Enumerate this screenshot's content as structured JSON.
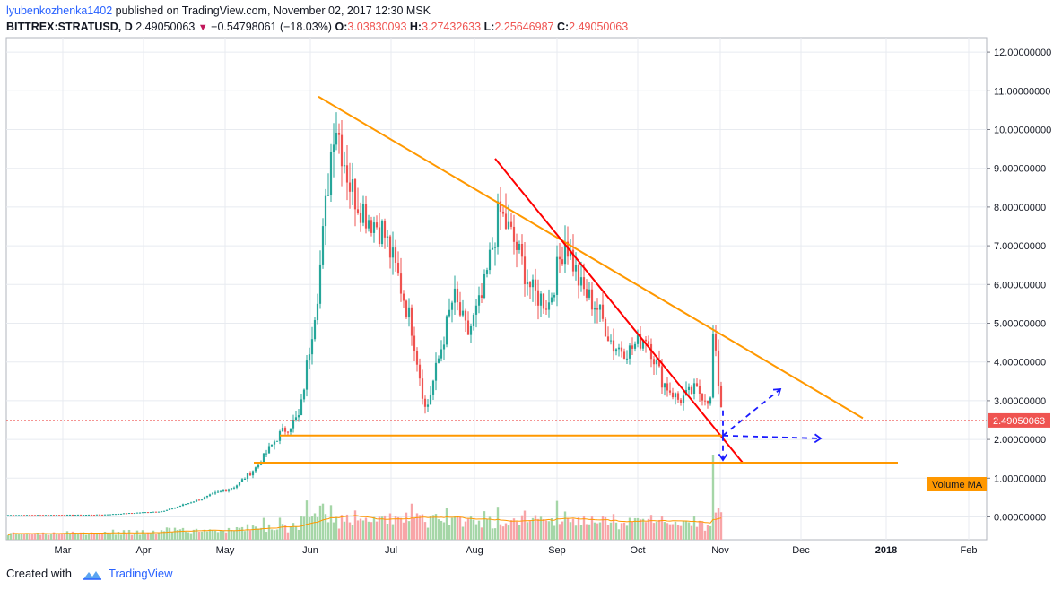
{
  "header": {
    "author": "lyubenkozhenka1402",
    "published_text": "published on TradingView.com, November 02, 2017 12:30 MSK",
    "symbol": "BITTREX:STRATUSD, D",
    "last": "2.49050063",
    "change": "−0.54798061 (−18.03%)",
    "o_label": "O:",
    "o_value": "3.03830093",
    "h_label": "H:",
    "h_value": "3.27432633",
    "l_label": "L:",
    "l_value": "2.25646987",
    "c_label": "C:",
    "c_value": "2.49050063"
  },
  "footer": {
    "created_with": "Created with",
    "brand": "TradingView"
  },
  "colors": {
    "up": "#26a69a",
    "down": "#ef5350",
    "volume_up": "#a5d6a7",
    "volume_down": "#f8a5a8",
    "trendline": "#ff9800",
    "breakout_line": "#ff0000",
    "projection": "#1a1aff",
    "price_tag": "#ef5350",
    "volume_ma": "#ff9800",
    "grid": "#e8ebf0"
  },
  "chart_data": {
    "type": "candlestick",
    "interval": "D",
    "y_axis": {
      "side": "right",
      "ticks": [
        "12.00000000",
        "11.00000000",
        "10.00000000",
        "9.00000000",
        "8.00000000",
        "7.00000000",
        "6.00000000",
        "5.00000000",
        "4.00000000",
        "3.00000000",
        "2.00000000",
        "1.00000000",
        "0.00000000"
      ],
      "ylim": [
        -0.6,
        12.4
      ]
    },
    "x_axis": {
      "ticks": [
        "Mar",
        "Apr",
        "May",
        "Jun",
        "Jul",
        "Aug",
        "Sep",
        "Oct",
        "Nov",
        "Dec",
        "2018",
        "Feb"
      ]
    },
    "grid": true,
    "last_price_label": "2.49050063",
    "volume_ma_label": "Volume MA",
    "price_path": [
      [
        "Feb",
        0.05
      ],
      [
        "Mar",
        0.06
      ],
      [
        "Apr",
        0.15
      ],
      [
        "Apr",
        0.5
      ],
      [
        "May",
        0.8
      ],
      [
        "May",
        1.3
      ],
      [
        "May",
        2.1
      ],
      [
        "May",
        2.6
      ],
      [
        "Jun",
        6.0
      ],
      [
        "Jun",
        10.4
      ],
      [
        "Jun",
        8.5
      ],
      [
        "Jun",
        7.8
      ],
      [
        "Jun",
        7.4
      ],
      [
        "Jul",
        6.2
      ],
      [
        "Jul",
        4.9
      ],
      [
        "Jul",
        2.7
      ],
      [
        "Jul",
        4.2
      ],
      [
        "Jul",
        5.7
      ],
      [
        "Jul",
        4.7
      ],
      [
        "Aug",
        5.7
      ],
      [
        "Aug",
        7.9
      ],
      [
        "Aug",
        7.0
      ],
      [
        "Aug",
        5.8
      ],
      [
        "Aug",
        5.5
      ],
      [
        "Sep",
        7.2
      ],
      [
        "Sep",
        5.9
      ],
      [
        "Sep",
        5.4
      ],
      [
        "Sep",
        4.4
      ],
      [
        "Sep",
        4.3
      ],
      [
        "Oct",
        4.7
      ],
      [
        "Oct",
        3.5
      ],
      [
        "Oct",
        3.0
      ],
      [
        "Oct",
        3.3
      ],
      [
        "Oct",
        4.9
      ],
      [
        "Nov",
        3.0
      ],
      [
        "Nov",
        2.49
      ]
    ],
    "annotations": {
      "descending_trendline": {
        "from": [
          "Jun",
          10.85
        ],
        "to": [
          "Dec",
          2.55
        ]
      },
      "breakout_line": {
        "from": [
          "Aug",
          9.25
        ],
        "to": [
          "Nov",
          1.4
        ]
      },
      "support_levels": [
        2.1,
        1.4
      ],
      "projections": [
        "up",
        "sideways",
        "down"
      ]
    }
  }
}
